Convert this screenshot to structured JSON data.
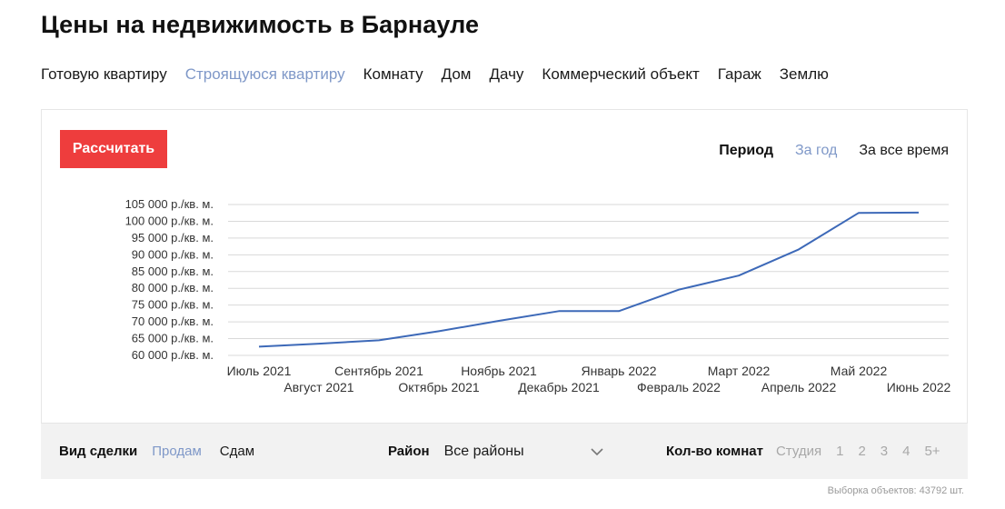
{
  "title": "Цены на недвижимость в Барнауле",
  "property_types": [
    {
      "label": "Готовую квартиру",
      "active": false
    },
    {
      "label": "Строящуюся квартиру",
      "active": true
    },
    {
      "label": "Комнату",
      "active": false
    },
    {
      "label": "Дом",
      "active": false
    },
    {
      "label": "Дачу",
      "active": false
    },
    {
      "label": "Коммерческий объект",
      "active": false
    },
    {
      "label": "Гараж",
      "active": false
    },
    {
      "label": "Землю",
      "active": false
    }
  ],
  "calc_button_label": "Рассчитать",
  "period": {
    "label": "Период",
    "options": [
      {
        "label": "За год",
        "active": true
      },
      {
        "label": "За все время",
        "active": false
      }
    ]
  },
  "chart_data": {
    "type": "line",
    "categories": [
      "Июль 2021",
      "Август 2021",
      "Сентябрь 2021",
      "Октябрь 2021",
      "Ноябрь 2021",
      "Декабрь 2021",
      "Январь 2022",
      "Февраль 2022",
      "Март 2022",
      "Апрель 2022",
      "Май 2022",
      "Июнь 2022"
    ],
    "values": [
      62600,
      63500,
      64500,
      67200,
      70300,
      73200,
      73200,
      79600,
      83800,
      91600,
      102500,
      102600
    ],
    "y_ticks": [
      {
        "value": 60000,
        "label": "60 000 р./кв. м."
      },
      {
        "value": 65000,
        "label": "65 000 р./кв. м."
      },
      {
        "value": 70000,
        "label": "70 000 р./кв. м."
      },
      {
        "value": 75000,
        "label": "75 000 р./кв. м."
      },
      {
        "value": 80000,
        "label": "80 000 р./кв. м."
      },
      {
        "value": 85000,
        "label": "85 000 р./кв. м."
      },
      {
        "value": 90000,
        "label": "90 000 р./кв. м."
      },
      {
        "value": 95000,
        "label": "95 000 р./кв. м."
      },
      {
        "value": 100000,
        "label": "100 000 р./кв. м."
      },
      {
        "value": 105000,
        "label": "105 000 р./кв. м."
      }
    ],
    "ylim": [
      60000,
      105000
    ],
    "grid": true,
    "line_color": "#3d69b8"
  },
  "filters": {
    "deal": {
      "label": "Вид сделки",
      "options": [
        {
          "label": "Продам",
          "active": true
        },
        {
          "label": "Сдам",
          "active": false
        }
      ]
    },
    "district": {
      "label": "Район",
      "value": "Все районы"
    },
    "rooms": {
      "label": "Кол-во комнат",
      "options": [
        "Студия",
        "1",
        "2",
        "3",
        "4",
        "5+"
      ]
    }
  },
  "count_note": "Выборка объектов: 43792 шт.",
  "colors": {
    "accent": "#7f98c8",
    "button": "#ee3d3d"
  }
}
